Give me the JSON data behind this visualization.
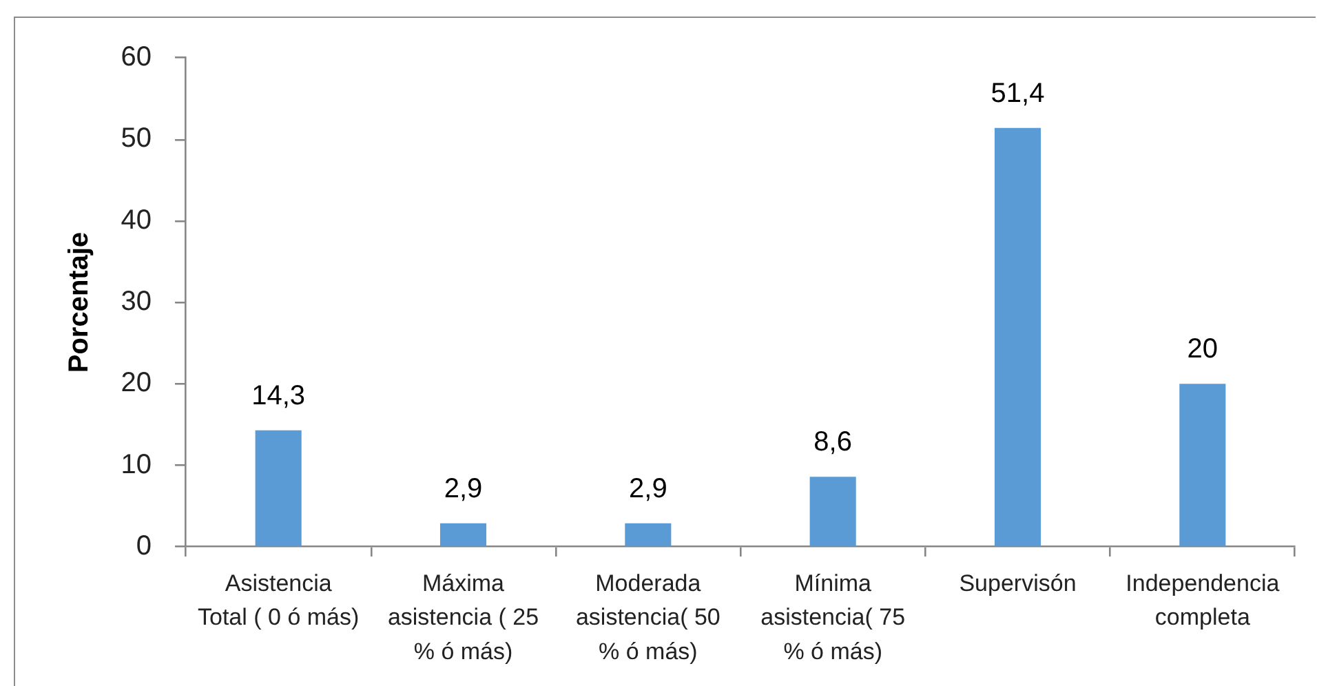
{
  "chart_data": {
    "type": "bar",
    "ylabel": "Porcentaje",
    "categories": [
      "Asistencia\nTotal ( 0 ó más)",
      "Máxima\nasistencia ( 25\n% ó más)",
      "Moderada\nasistencia( 50\n% ó más)",
      "Mínima\nasistencia( 75\n% ó más)",
      "Supervisón",
      "Independencia\ncompleta"
    ],
    "values": [
      14.3,
      2.9,
      2.9,
      8.6,
      51.4,
      20
    ],
    "color": "#5b9bd5",
    "value_labels": [
      "14,3",
      "2,9",
      "2,9",
      "8,6",
      "51,4",
      "20"
    ],
    "ylim": [
      0,
      60
    ],
    "yticks": [
      0,
      10,
      20,
      30,
      40,
      50,
      60
    ],
    "grid": false
  }
}
